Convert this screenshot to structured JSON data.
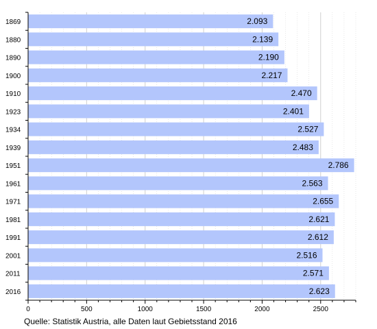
{
  "chart_data": {
    "type": "bar",
    "orientation": "horizontal",
    "categories": [
      "1869",
      "1880",
      "1890",
      "1900",
      "1910",
      "1923",
      "1934",
      "1939",
      "1951",
      "1961",
      "1971",
      "1981",
      "1991",
      "2001",
      "2011",
      "2016"
    ],
    "values": [
      2093,
      2139,
      2190,
      2217,
      2470,
      2401,
      2527,
      2483,
      2786,
      2563,
      2655,
      2621,
      2612,
      2516,
      2571,
      2623
    ],
    "value_labels": [
      "2.093",
      "2.139",
      "2.190",
      "2.217",
      "2.470",
      "2.401",
      "2.527",
      "2.483",
      "2.786",
      "2.563",
      "2.655",
      "2.621",
      "2.612",
      "2.516",
      "2.571",
      "2.623"
    ],
    "xlim": [
      0,
      2800
    ],
    "xticks": [
      0,
      500,
      1000,
      1500,
      2000,
      2500
    ],
    "xtick_labels": [
      "0",
      "500",
      "1000",
      "1500",
      "2000",
      "2500"
    ],
    "grid": true,
    "bar_color": "#b3c6fc",
    "grid_color": "#cfcfcf"
  },
  "source_note": "Quelle: Statistik Austria, alle Daten laut Gebietsstand 2016"
}
